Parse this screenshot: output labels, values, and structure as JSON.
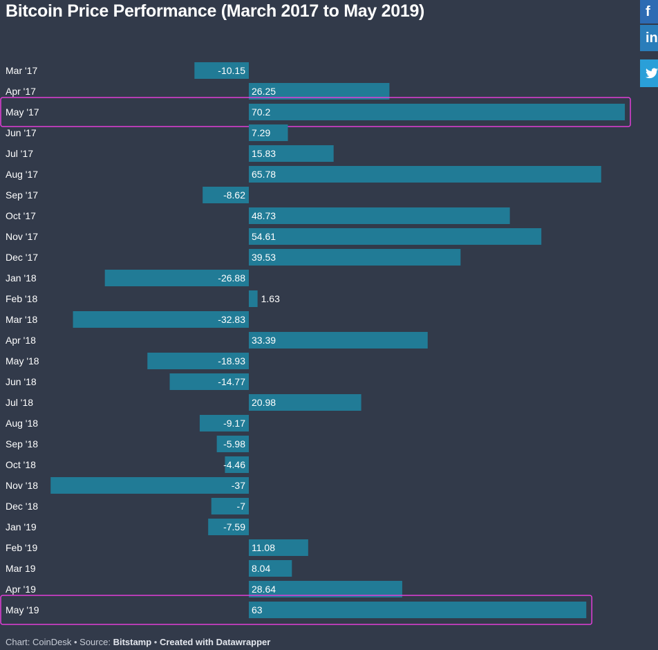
{
  "title": "Bitcoin Price Performance (March 2017 to May 2019)",
  "footer": {
    "prefix": "Chart: CoinDesk • Source: ",
    "source": "Bitstamp",
    "sep": " • ",
    "credit": "Created with Datawrapper"
  },
  "share": {
    "facebook": "f",
    "linkedin": "in",
    "twitter": "twitter-icon"
  },
  "colors": {
    "background": "#323a4a",
    "bar": "#217b96",
    "highlight": "#e13ed8",
    "text": "#ffffff"
  },
  "chart_data": {
    "type": "bar",
    "orientation": "horizontal",
    "categories": [
      "Mar '17",
      "Apr '17",
      "May '17",
      "Jun '17",
      "Jul '17",
      "Aug '17",
      "Sep '17",
      "Oct '17",
      "Nov '17",
      "Dec '17",
      "Jan '18",
      "Feb '18",
      "Mar '18",
      "Apr '18",
      "May '18",
      "Jun '18",
      "Jul '18",
      "Aug '18",
      "Sep '18",
      "Oct '18",
      "Nov '18",
      "Dec '18",
      "Jan '19",
      "Feb '19",
      "Mar 19",
      "Apr '19",
      "May '19"
    ],
    "values": [
      -10.15,
      26.25,
      70.2,
      7.29,
      15.83,
      65.78,
      -8.62,
      48.73,
      54.61,
      39.53,
      -26.88,
      1.63,
      -32.83,
      33.39,
      -18.93,
      -14.77,
      20.98,
      -9.17,
      -5.98,
      -4.46,
      -37,
      -7,
      -7.59,
      11.08,
      8.04,
      28.64,
      63
    ],
    "value_labels": [
      "-10.15",
      "26.25",
      "70.2",
      "7.29",
      "15.83",
      "65.78",
      "-8.62",
      "48.73",
      "54.61",
      "39.53",
      "-26.88",
      "1.63",
      "-32.83",
      "33.39",
      "-18.93",
      "-14.77",
      "20.98",
      "-9.17",
      "-5.98",
      "-4.46",
      "-37",
      "-7",
      "-7.59",
      "11.08",
      "8.04",
      "28.64",
      "63"
    ],
    "highlighted": [
      "May '17",
      "May '19"
    ],
    "xlim": [
      -37,
      70.2
    ],
    "grid": false,
    "legend": "none"
  }
}
